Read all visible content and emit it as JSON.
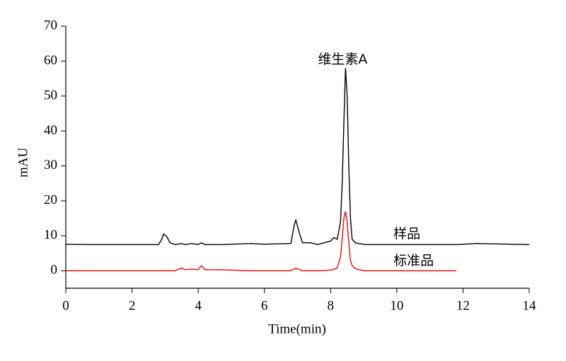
{
  "chart_data": {
    "type": "line",
    "x_label": "Time(min)",
    "y_label": "mAU",
    "xlim": [
      0,
      14
    ],
    "ylim": [
      -5,
      70
    ],
    "xticks": [
      0,
      2,
      4,
      6,
      8,
      10,
      12,
      14
    ],
    "yticks": [
      0,
      10,
      20,
      30,
      40,
      50,
      60,
      70
    ],
    "annotations": [
      "维生素A"
    ],
    "x": [
      0,
      0.7,
      2.8,
      2.9,
      2.95,
      3.05,
      3.15,
      3.3,
      3.5,
      3.6,
      3.8,
      4.0,
      4.1,
      4.2,
      4.7,
      5.6,
      6.0,
      6.8,
      6.9,
      6.95,
      7.05,
      7.15,
      7.4,
      7.6,
      8.0,
      8.1,
      8.2,
      8.3,
      8.35,
      8.4,
      8.45,
      8.5,
      8.55,
      8.6,
      8.65,
      8.75,
      8.9,
      9.1,
      11.8,
      12.4,
      14
    ],
    "series": [
      {
        "name": "样品",
        "color": "#000000",
        "values": [
          7.6,
          7.5,
          7.5,
          9,
          10.5,
          9.8,
          8,
          7.5,
          7.8,
          7.5,
          7.8,
          7.5,
          8,
          7.5,
          7.5,
          7.8,
          7.6,
          7.8,
          13,
          14.5,
          11,
          8,
          8,
          7.5,
          8.5,
          9.5,
          9,
          14,
          25,
          42,
          58,
          50,
          30,
          15,
          9,
          8,
          7.7,
          7.5,
          7.5,
          7.8,
          7.5
        ]
      },
      {
        "name": "标准品",
        "color": "#ff0000",
        "values": [
          0,
          0,
          0,
          0,
          0,
          0,
          0,
          0,
          0.8,
          0.3,
          0.5,
          0.3,
          1.5,
          0.3,
          0.3,
          0,
          0,
          0,
          0.5,
          0.7,
          0.4,
          0,
          0,
          0,
          0.2,
          0.4,
          0.8,
          4,
          9,
          15,
          17,
          14,
          8,
          3,
          1.5,
          0.6,
          0.2,
          0,
          0,
          null,
          null
        ]
      }
    ]
  }
}
